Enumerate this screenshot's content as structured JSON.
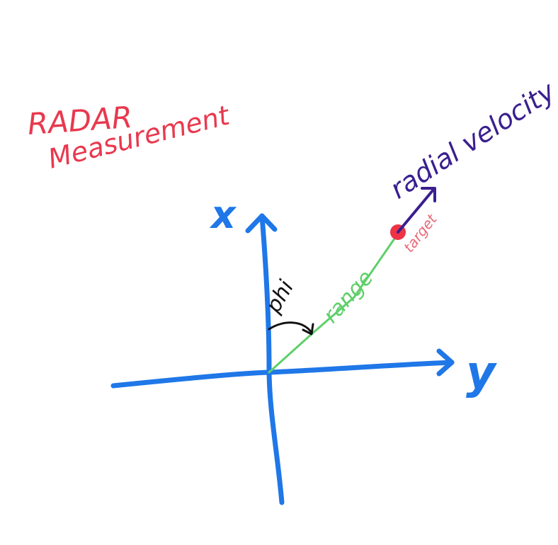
{
  "title": {
    "line1": "RADAR",
    "line2": "Measurement",
    "color": "#e8394f"
  },
  "axes": {
    "vertical_label": "x",
    "horizontal_label": "y",
    "color": "#1f77e8"
  },
  "angle": {
    "label": "phi",
    "color": "#111111"
  },
  "range": {
    "label": "range",
    "color": "#5fcf6a"
  },
  "target": {
    "label": "target",
    "color": "#ee3344",
    "label_color": "#e86a78"
  },
  "velocity": {
    "label": "radial velocity",
    "color": "#3a1f8f"
  }
}
